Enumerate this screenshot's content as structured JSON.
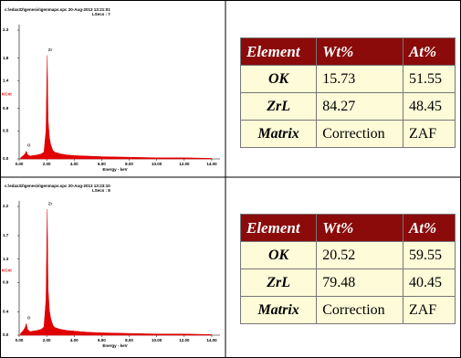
{
  "chart_data": [
    {
      "type": "area",
      "title": "c:\\edax32\\genesis\\genmaps.spc 20-Aug-2013 13:21:01",
      "subtitle": "LSecs : 7",
      "xlabel": "Energy - keV",
      "ylabel": "KCnt",
      "color": "#e00000",
      "x": [
        0.1,
        0.3,
        0.45,
        0.52,
        0.6,
        0.8,
        1.0,
        1.3,
        1.6,
        1.8,
        1.95,
        2.04,
        2.1,
        2.2,
        2.3,
        2.45,
        2.6,
        3.0,
        3.5,
        4.0,
        5.0,
        6.0,
        8.0,
        10.0,
        12.0,
        14.0
      ],
      "values": [
        0.02,
        0.06,
        0.1,
        0.14,
        0.08,
        0.05,
        0.06,
        0.07,
        0.09,
        0.12,
        0.5,
        1.85,
        0.7,
        0.38,
        0.25,
        0.15,
        0.12,
        0.09,
        0.07,
        0.06,
        0.05,
        0.04,
        0.03,
        0.02,
        0.02,
        0.01
      ],
      "annotations": [
        {
          "text": "O",
          "x": 0.52
        },
        {
          "text": "Zr",
          "x": 2.04
        }
      ],
      "xlim": [
        0,
        14.6
      ],
      "ylim": [
        0,
        2.3
      ],
      "xticks": [
        {
          "value": 0,
          "label": "0.00"
        },
        {
          "value": 2,
          "label": "2.00"
        },
        {
          "value": 4,
          "label": "4.00"
        },
        {
          "value": 6,
          "label": "6.00"
        },
        {
          "value": 8,
          "label": "8.00"
        },
        {
          "value": 10,
          "label": "10.00"
        },
        {
          "value": 12,
          "label": "12.00"
        },
        {
          "value": 14,
          "label": "14.00"
        }
      ],
      "yticks": [
        {
          "value": 0,
          "label": "0.0"
        },
        0.5,
        0.9,
        1.4,
        1.8,
        2.3
      ]
    },
    {
      "type": "area",
      "title": "c:\\edax32\\genesis\\genmaps.spc 20-Aug-2013 13:23:10",
      "subtitle": "LSecs : 8",
      "xlabel": "Energy - keV",
      "ylabel": "KCnt",
      "color": "#e00000",
      "x": [
        0.1,
        0.3,
        0.45,
        0.52,
        0.6,
        0.8,
        1.0,
        1.3,
        1.6,
        1.8,
        1.95,
        2.04,
        2.1,
        2.2,
        2.3,
        2.45,
        2.6,
        3.0,
        3.5,
        4.0,
        5.0,
        6.0,
        8.0,
        10.0,
        12.0,
        14.0
      ],
      "values": [
        0.03,
        0.08,
        0.14,
        0.2,
        0.1,
        0.06,
        0.07,
        0.08,
        0.1,
        0.14,
        0.6,
        2.15,
        0.8,
        0.42,
        0.28,
        0.17,
        0.13,
        0.1,
        0.08,
        0.07,
        0.05,
        0.04,
        0.03,
        0.02,
        0.02,
        0.01
      ],
      "annotations": [
        {
          "text": "O",
          "x": 0.52
        },
        {
          "text": "Zr",
          "x": 2.04
        }
      ],
      "xlim": [
        0,
        14.6
      ],
      "ylim": [
        0,
        2.2
      ],
      "xticks": [
        {
          "value": 0,
          "label": "0.00"
        },
        {
          "value": 2,
          "label": "2.00"
        },
        {
          "value": 4,
          "label": "4.00"
        },
        {
          "value": 6,
          "label": "6.00"
        },
        {
          "value": 8,
          "label": "8.00"
        },
        {
          "value": 10,
          "label": "10.00"
        },
        {
          "value": 12,
          "label": "12.00"
        },
        {
          "value": 14,
          "label": "14.00"
        }
      ],
      "yticks": [
        {
          "value": 0,
          "label": "0.0"
        },
        0.4,
        0.9,
        1.3,
        1.7,
        2.2
      ]
    }
  ],
  "tables": [
    {
      "header": [
        "Element",
        "Wt%",
        "At%"
      ],
      "rows": [
        [
          "OK",
          15.73,
          51.55
        ],
        [
          "ZrL",
          84.27,
          48.45
        ],
        [
          "Matrix",
          "Correction",
          "ZAF"
        ]
      ]
    },
    {
      "header": [
        "Element",
        "Wt%",
        "At%"
      ],
      "rows": [
        [
          "OK",
          20.52,
          59.55
        ],
        [
          "ZrL",
          79.48,
          40.45
        ],
        [
          "Matrix",
          "Correction",
          "ZAF"
        ]
      ]
    }
  ]
}
